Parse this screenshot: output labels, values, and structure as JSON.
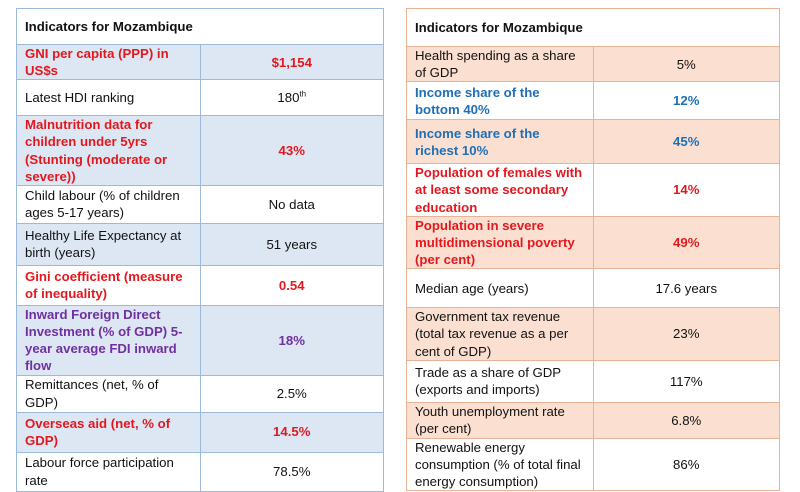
{
  "left_table": {
    "title": "Indicators for Mozambique",
    "rows": [
      {
        "label": "GNI per capita (PPP) in US$s",
        "value": "$1,154"
      },
      {
        "label": "Latest HDI ranking",
        "value": "180",
        "value_sup": "th"
      },
      {
        "label": "Malnutrition data for children under 5yrs (Stunting (moderate or severe))",
        "value": "43%"
      },
      {
        "label": "Child labour (% of children ages 5-17 years)",
        "value": "No data"
      },
      {
        "label": "Healthy Life Expectancy at birth (years)",
        "value": "51 years"
      },
      {
        "label": "Gini coefficient (measure of inequality)",
        "value": "0.54"
      },
      {
        "label": "Inward Foreign Direct Investment (% of GDP) 5-year average FDI inward flow",
        "value": "18%"
      },
      {
        "label": "Remittances (net, % of GDP)",
        "value": "2.5%"
      },
      {
        "label": "Overseas aid (net, % of GDP)",
        "value": "14.5%"
      },
      {
        "label": "Labour force participation rate",
        "value": "78.5%"
      }
    ]
  },
  "right_table": {
    "title": "Indicators for Mozambique",
    "rows": [
      {
        "label": "Health spending as a share of GDP",
        "value": "5%"
      },
      {
        "label": "Income share of the bottom 40%",
        "value": "12%"
      },
      {
        "label": "Income share of the richest 10%",
        "value": "45%"
      },
      {
        "label": "Population of females with at least some secondary education",
        "value": "14%"
      },
      {
        "label": "Population in severe multidimensional poverty (per cent)",
        "value": "49%"
      },
      {
        "label": "Median age (years)",
        "value": "17.6 years"
      },
      {
        "label": "Government tax revenue (total tax revenue as a per cent of GDP)",
        "value": "23%"
      },
      {
        "label": "Trade as a share of GDP (exports and imports)",
        "value": "117%"
      },
      {
        "label": "Youth unemployment rate (per cent)",
        "value": "6.8%"
      },
      {
        "label": "Renewable energy consumption (% of total final energy consumption)",
        "value": "86%"
      }
    ]
  },
  "colors": {
    "red_highlight": "#e3181f",
    "blue_highlight": "#1f6fb5",
    "purple_highlight": "#7030a0",
    "left_border": "#6f9fce",
    "left_band": "#dde7f3",
    "right_border": "#e09a72",
    "right_band": "#fbe0d2"
  }
}
